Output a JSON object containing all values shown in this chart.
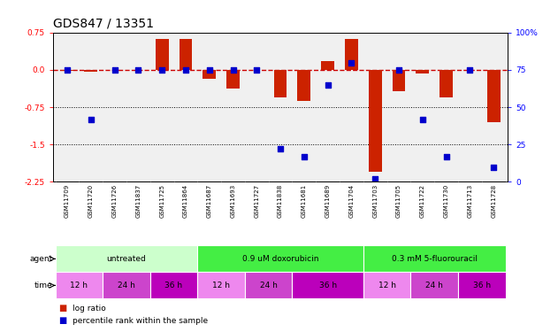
{
  "title": "GDS847 / 13351",
  "samples": [
    "GSM11709",
    "GSM11720",
    "GSM11726",
    "GSM11837",
    "GSM11725",
    "GSM11864",
    "GSM11687",
    "GSM11693",
    "GSM11727",
    "GSM11838",
    "GSM11681",
    "GSM11689",
    "GSM11704",
    "GSM11703",
    "GSM11705",
    "GSM11722",
    "GSM11730",
    "GSM11713",
    "GSM11728"
  ],
  "log_ratios": [
    -0.02,
    -0.04,
    0.0,
    0.0,
    0.62,
    0.62,
    -0.18,
    -0.38,
    0.0,
    -0.55,
    -0.62,
    0.18,
    0.62,
    -2.05,
    -0.42,
    -0.08,
    -0.55,
    0.0,
    -1.05
  ],
  "percentile_ranks": [
    75,
    42,
    75,
    75,
    75,
    75,
    75,
    75,
    75,
    22,
    17,
    65,
    80,
    2,
    75,
    42,
    17,
    75,
    10
  ],
  "ylim_left": [
    -2.25,
    0.75
  ],
  "ylim_right": [
    0,
    100
  ],
  "yticks_left": [
    0.75,
    0.0,
    -0.75,
    -1.5,
    -2.25
  ],
  "yticks_right": [
    100,
    75,
    50,
    25,
    0
  ],
  "bar_color": "#CC2200",
  "dot_color": "#0000CC",
  "zero_line_color": "#CC0000",
  "dot_line_color": "#000000",
  "bg_color": "#FFFFFF",
  "plot_bg": "#F0F0F0",
  "sample_bg": "#C8C8C8",
  "agent_groups": [
    {
      "label": "untreated",
      "color": "#CCFFCC",
      "xstart": 0,
      "xend": 6
    },
    {
      "label": "0.9 uM doxorubicin",
      "color": "#44EE44",
      "xstart": 6,
      "xend": 13
    },
    {
      "label": "0.3 mM 5-fluorouracil",
      "color": "#44EE44",
      "xstart": 13,
      "xend": 19
    }
  ],
  "time_groups": [
    {
      "label": "12 h",
      "color": "#EE88EE",
      "xstart": 0,
      "xend": 2
    },
    {
      "label": "24 h",
      "color": "#CC44CC",
      "xstart": 2,
      "xend": 4
    },
    {
      "label": "36 h",
      "color": "#BB00BB",
      "xstart": 4,
      "xend": 6
    },
    {
      "label": "12 h",
      "color": "#EE88EE",
      "xstart": 6,
      "xend": 8
    },
    {
      "label": "24 h",
      "color": "#CC44CC",
      "xstart": 8,
      "xend": 10
    },
    {
      "label": "36 h",
      "color": "#BB00BB",
      "xstart": 10,
      "xend": 13
    },
    {
      "label": "12 h",
      "color": "#EE88EE",
      "xstart": 13,
      "xend": 15
    },
    {
      "label": "24 h",
      "color": "#CC44CC",
      "xstart": 15,
      "xend": 17
    },
    {
      "label": "36 h",
      "color": "#BB00BB",
      "xstart": 17,
      "xend": 19
    }
  ],
  "title_fontsize": 10,
  "tick_fontsize": 6.5,
  "sample_fontsize": 5.0,
  "row_fontsize": 6.5
}
